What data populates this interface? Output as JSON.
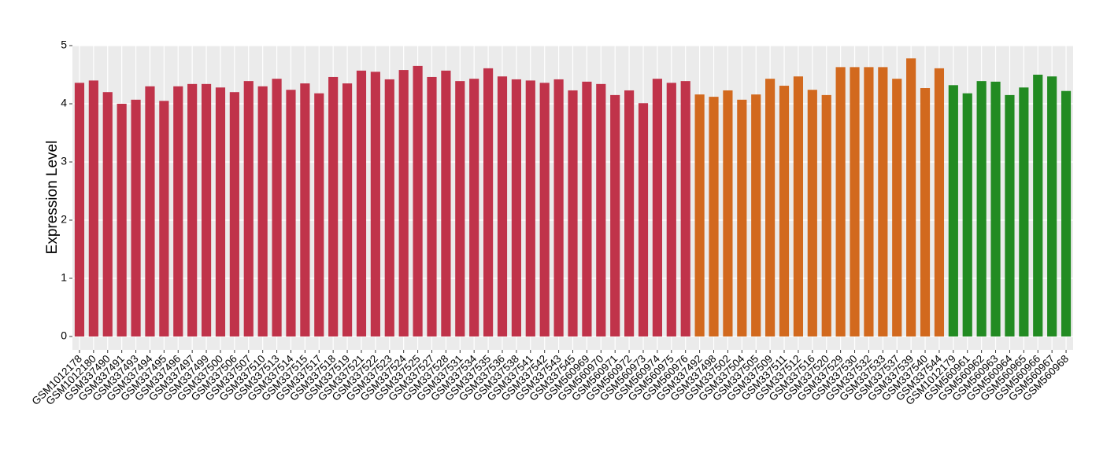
{
  "chart_data": {
    "type": "bar",
    "y_label": "Expression Level",
    "categories": [
      "GSM1012178",
      "GSM1012180",
      "GSM337490",
      "GSM337491",
      "GSM337493",
      "GSM337494",
      "GSM337495",
      "GSM337496",
      "GSM337497",
      "GSM337499",
      "GSM337500",
      "GSM337506",
      "GSM337507",
      "GSM337510",
      "GSM337513",
      "GSM337514",
      "GSM337515",
      "GSM337517",
      "GSM337518",
      "GSM337519",
      "GSM337521",
      "GSM337522",
      "GSM337523",
      "GSM337524",
      "GSM337525",
      "GSM337527",
      "GSM337528",
      "GSM337531",
      "GSM337534",
      "GSM337535",
      "GSM337536",
      "GSM337538",
      "GSM337541",
      "GSM337542",
      "GSM337543",
      "GSM337545",
      "GSM560969",
      "GSM560970",
      "GSM560971",
      "GSM560972",
      "GSM560973",
      "GSM560974",
      "GSM560975",
      "GSM560976",
      "GSM337492",
      "GSM337498",
      "GSM337502",
      "GSM337504",
      "GSM337505",
      "GSM337509",
      "GSM337511",
      "GSM337512",
      "GSM337516",
      "GSM337520",
      "GSM337529",
      "GSM337530",
      "GSM337532",
      "GSM337533",
      "GSM337537",
      "GSM337539",
      "GSM337540",
      "GSM337544",
      "GSM1012179",
      "GSM560961",
      "GSM560962",
      "GSM560963",
      "GSM560964",
      "GSM560965",
      "GSM560966",
      "GSM560967",
      "GSM560968"
    ],
    "values": [
      4.36,
      4.4,
      4.2,
      4.0,
      4.07,
      4.3,
      4.05,
      4.3,
      4.34,
      4.34,
      4.28,
      4.2,
      4.39,
      4.3,
      4.43,
      4.24,
      4.35,
      4.18,
      4.46,
      4.35,
      4.57,
      4.55,
      4.42,
      4.58,
      4.65,
      4.46,
      4.57,
      4.39,
      4.43,
      4.61,
      4.47,
      4.42,
      4.4,
      4.36,
      4.42,
      4.23,
      4.38,
      4.34,
      4.15,
      4.23,
      4.01,
      4.43,
      4.36,
      4.39,
      4.16,
      4.12,
      4.23,
      4.07,
      4.16,
      4.43,
      4.31,
      4.47,
      4.24,
      4.15,
      4.63,
      4.63,
      4.63,
      4.63,
      4.43,
      4.78,
      4.27,
      4.61,
      4.32,
      4.18,
      4.39,
      4.38,
      4.15,
      4.28,
      4.5,
      4.47,
      4.22
    ],
    "colors": [
      "#c0334a",
      "#c0334a",
      "#c0334a",
      "#c0334a",
      "#c0334a",
      "#c0334a",
      "#c0334a",
      "#c0334a",
      "#c0334a",
      "#c0334a",
      "#c0334a",
      "#c0334a",
      "#c0334a",
      "#c0334a",
      "#c0334a",
      "#c0334a",
      "#c0334a",
      "#c0334a",
      "#c0334a",
      "#c0334a",
      "#c0334a",
      "#c0334a",
      "#c0334a",
      "#c0334a",
      "#c0334a",
      "#c0334a",
      "#c0334a",
      "#c0334a",
      "#c0334a",
      "#c0334a",
      "#c0334a",
      "#c0334a",
      "#c0334a",
      "#c0334a",
      "#c0334a",
      "#c0334a",
      "#c0334a",
      "#c0334a",
      "#c0334a",
      "#c0334a",
      "#c0334a",
      "#c0334a",
      "#c0334a",
      "#c0334a",
      "#d2691e",
      "#d2691e",
      "#d2691e",
      "#d2691e",
      "#d2691e",
      "#d2691e",
      "#d2691e",
      "#d2691e",
      "#d2691e",
      "#d2691e",
      "#d2691e",
      "#d2691e",
      "#d2691e",
      "#d2691e",
      "#d2691e",
      "#d2691e",
      "#d2691e",
      "#d2691e",
      "#228b22",
      "#228b22",
      "#228b22",
      "#228b22",
      "#228b22",
      "#228b22",
      "#228b22",
      "#228b22",
      "#228b22"
    ],
    "ylim": [
      -0.23,
      5.0
    ],
    "yticks": [
      0,
      1,
      2,
      3,
      4,
      5
    ],
    "grid": true
  }
}
